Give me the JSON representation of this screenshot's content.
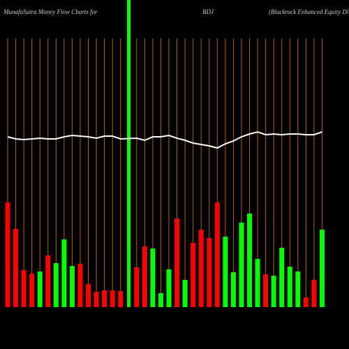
{
  "chart_data": {
    "type": "bar",
    "title": "MunafaSutra  Money Flow  Charts for",
    "subtitle": "BDJ",
    "annotation": "(Blackrock Enhanced Equity Div",
    "ylim": [
      0,
      440
    ],
    "values": [
      150,
      112,
      53,
      48,
      51,
      74,
      63,
      97,
      59,
      62,
      33,
      22,
      24,
      24,
      23,
      57,
      87,
      84,
      20,
      54,
      127,
      39,
      92,
      111,
      99,
      150,
      101,
      50,
      121,
      134,
      69,
      47,
      45,
      85,
      58,
      51,
      14,
      39,
      111
    ],
    "colors": [
      "#ff0000",
      "#ff0000",
      "#ff0000",
      "#ff0000",
      "#00ff00",
      "#ff0000",
      "#00ff00",
      "#00ff00",
      "#00ff00",
      "#ff0000",
      "#ff0000",
      "#ff0000",
      "#ff0000",
      "#ff0000",
      "#ff0000",
      "#ff0000",
      "#ff0000",
      "#00ff00",
      "#00ff00",
      "#00ff00",
      "#ff0000",
      "#00ff00",
      "#ff0000",
      "#ff0000",
      "#ff0000",
      "#ff0000",
      "#00ff00",
      "#00ff00",
      "#00ff00",
      "#00ff00",
      "#00ff00",
      "#ff0000",
      "#00ff00",
      "#00ff00",
      "#00ff00",
      "#00ff00",
      "#ff0000",
      "#ff0000",
      "#00ff00"
    ],
    "line": {
      "color": "#ffffff",
      "values": [
        244,
        241,
        240,
        241,
        242,
        241,
        241,
        244,
        246,
        245,
        244,
        242,
        245,
        245,
        241,
        242,
        239,
        244,
        244,
        246,
        242,
        239,
        235,
        233,
        231,
        228,
        234,
        238,
        244,
        248,
        251,
        247,
        248,
        247,
        248,
        248,
        247,
        247,
        251
      ]
    }
  }
}
